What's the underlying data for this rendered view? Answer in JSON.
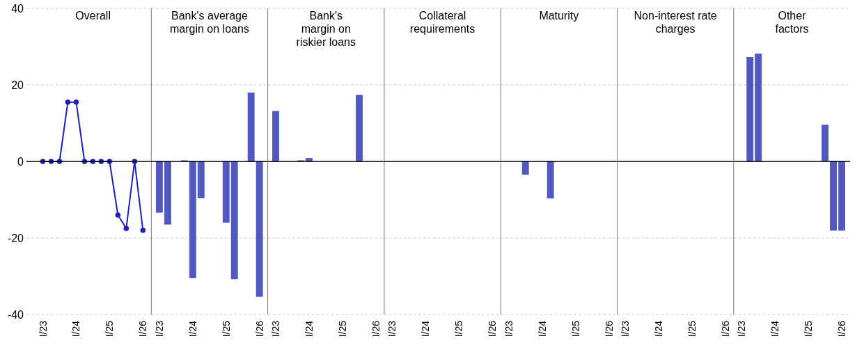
{
  "chart_data": [
    {
      "type": "line",
      "title": "Overall",
      "categories": [
        "I/23",
        null,
        null,
        null,
        "I/24",
        null,
        null,
        null,
        "I/25",
        null,
        null,
        null,
        "I/26"
      ],
      "values": [
        0,
        0,
        0,
        15.5,
        15.5,
        0,
        0,
        0,
        0,
        -14,
        -17.5,
        0,
        -18
      ],
      "color": "#2020b0",
      "marker": "circle",
      "ylim": [
        -40,
        40
      ],
      "yticks": [
        -40,
        -20,
        0,
        20,
        40
      ],
      "grid": "y"
    },
    {
      "type": "bar",
      "title": "Bank's average\nmargin on loans",
      "categories": [
        "I/23",
        null,
        null,
        null,
        "I/24",
        null,
        null,
        null,
        "I/25",
        null,
        null,
        null,
        "I/26"
      ],
      "values": [
        -13.3,
        -16.4,
        0,
        0.2,
        -30.4,
        -9.5,
        0,
        0,
        -15.9,
        -30.7,
        0,
        17.9,
        -35.3
      ],
      "color": "#4a4ebd",
      "ylim": [
        -40,
        40
      ],
      "yticks": [
        -40,
        -20,
        0,
        20,
        40
      ],
      "grid": "y",
      "tick_labels": "x"
    },
    {
      "type": "bar",
      "title": "Bank's\nmargin on\nriskier loans",
      "categories": [
        "I/23",
        null,
        null,
        null,
        "I/24",
        null,
        null,
        null,
        "I/25",
        null,
        null,
        null,
        "I/26"
      ],
      "values": [
        13.1,
        0,
        0,
        0.2,
        0.8,
        0,
        0,
        0,
        0,
        0,
        17.3,
        0,
        0
      ],
      "color": "#4a4ebd",
      "ylim": [
        -40,
        40
      ],
      "yticks": [
        -40,
        -20,
        0,
        20,
        40
      ],
      "grid": "y",
      "tick_labels": "x"
    },
    {
      "type": "bar",
      "title": "Collateral\nrequirements",
      "categories": [
        "I/23",
        null,
        null,
        null,
        "I/24",
        null,
        null,
        null,
        "I/25",
        null,
        null,
        null,
        "I/26"
      ],
      "values": [
        0,
        0,
        0,
        0,
        0,
        0,
        0,
        0,
        0,
        0,
        0,
        0,
        0
      ],
      "color": "#4a4ebd",
      "ylim": [
        -40,
        40
      ],
      "yticks": [
        -40,
        -20,
        0,
        20,
        40
      ],
      "grid": "y",
      "tick_labels": "x"
    },
    {
      "type": "bar",
      "title": "Maturity",
      "categories": [
        "I/23",
        null,
        null,
        null,
        "I/24",
        null,
        null,
        null,
        "I/25",
        null,
        null,
        null,
        "I/26"
      ],
      "values": [
        0,
        0,
        -3.4,
        0,
        0,
        -9.6,
        0,
        0,
        0,
        0,
        0,
        0,
        0
      ],
      "color": "#4a4ebd",
      "ylim": [
        -40,
        40
      ],
      "yticks": [
        -40,
        -20,
        0,
        20,
        40
      ],
      "grid": "y",
      "tick_labels": "x"
    },
    {
      "type": "bar",
      "title": "Non-interest rate\ncharges",
      "categories": [
        "I/23",
        null,
        null,
        null,
        "I/24",
        null,
        null,
        null,
        "I/25",
        null,
        null,
        null,
        "I/26"
      ],
      "values": [
        0,
        0,
        0,
        0,
        0,
        0,
        0,
        0,
        0,
        0,
        0,
        0,
        0
      ],
      "color": "#4a4ebd",
      "ylim": [
        -40,
        40
      ],
      "yticks": [
        -40,
        -20,
        0,
        20,
        40
      ],
      "grid": "y",
      "tick_labels": "x"
    },
    {
      "type": "bar",
      "title": "Other\nfactors",
      "categories": [
        "I/23",
        null,
        null,
        null,
        "I/24",
        null,
        null,
        null,
        "I/25",
        null,
        null,
        null,
        "I/26"
      ],
      "values": [
        0,
        27.2,
        28.1,
        0,
        0,
        0,
        0,
        0,
        0,
        0,
        9.5,
        -18,
        -18
      ],
      "color": "#4a4ebd",
      "ylim": [
        -40,
        40
      ],
      "yticks": [
        -40,
        -20,
        0,
        20,
        40
      ],
      "grid": "y",
      "tick_labels": "x"
    }
  ]
}
